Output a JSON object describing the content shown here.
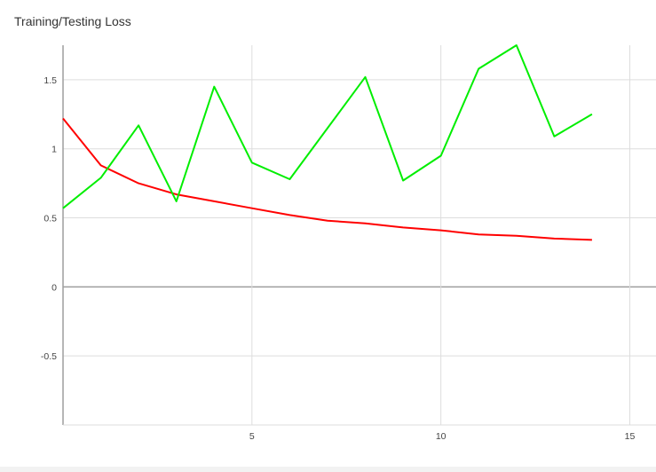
{
  "chart_data": {
    "type": "line",
    "title": "Training/Testing Loss",
    "xlabel": "",
    "ylabel": "",
    "xlim": [
      0,
      15
    ],
    "ylim": [
      -1,
      1.75
    ],
    "grid": true,
    "xticks": [
      5,
      10,
      15
    ],
    "yticks": [
      -0.5,
      0,
      0.5,
      1,
      1.5
    ],
    "ytick_labels": [
      "-0.5",
      "0",
      "0.5",
      "1",
      "1.5"
    ],
    "xtick_labels": [
      "5",
      "10",
      "15"
    ],
    "series": [
      {
        "color": "#ff0000",
        "x": [
          0,
          1,
          2,
          3,
          4,
          5,
          6,
          7,
          8,
          9,
          10,
          11,
          12,
          13,
          14
        ],
        "values": [
          1.22,
          0.88,
          0.75,
          0.67,
          0.62,
          0.57,
          0.52,
          0.48,
          0.46,
          0.43,
          0.41,
          0.38,
          0.37,
          0.35,
          0.34
        ]
      },
      {
        "color": "#00ee00",
        "x": [
          0,
          1,
          2,
          3,
          4,
          5,
          6,
          7,
          8,
          9,
          10,
          11,
          12,
          13,
          14
        ],
        "values": [
          0.57,
          0.79,
          1.17,
          0.62,
          1.45,
          0.9,
          0.78,
          1.15,
          1.52,
          0.77,
          0.95,
          1.58,
          1.75,
          1.09,
          1.25
        ]
      }
    ]
  }
}
